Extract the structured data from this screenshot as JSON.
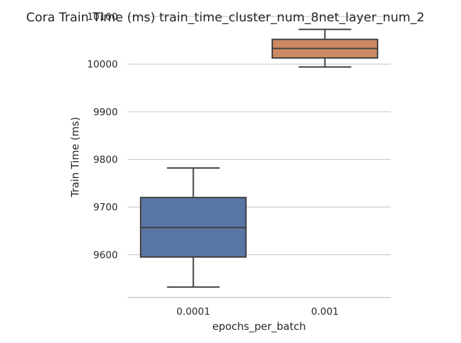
{
  "chart_data": {
    "type": "box",
    "title": "Cora Train Time (ms) train_time_cluster_num_8net_layer_num_2",
    "xlabel": "epochs_per_batch",
    "ylabel": "Train Time (ms)",
    "categories": [
      "0.0001",
      "0.001"
    ],
    "ylim": [
      9510,
      10100
    ],
    "yticks": [
      9600,
      9700,
      9800,
      9900,
      10000,
      10100
    ],
    "grid": "horizontal",
    "series": [
      {
        "category": "0.0001",
        "color": "#5975a4",
        "whisker_low": 9532,
        "q1": 9595,
        "median": 9657,
        "q3": 9720,
        "whisker_high": 9782
      },
      {
        "category": "0.001",
        "color": "#cc8963",
        "whisker_low": 9994,
        "q1": 10013,
        "median": 10033,
        "q3": 10052,
        "whisker_high": 10073
      }
    ]
  }
}
